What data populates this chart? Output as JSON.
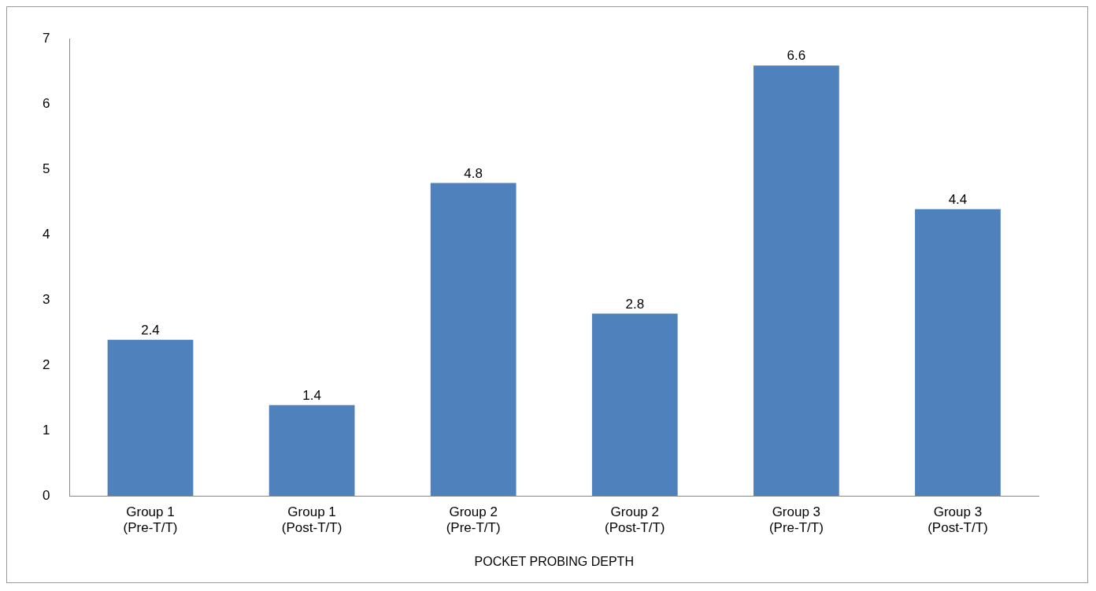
{
  "chart_data": {
    "type": "bar",
    "categories": [
      "Group 1\n(Pre-T/T)",
      "Group 1\n(Post-T/T)",
      "Group 2\n(Pre-T/T)",
      "Group 2\n(Post-T/T)",
      "Group 3\n(Pre-T/T)",
      "Group 3\n(Post-T/T)"
    ],
    "values": [
      2.4,
      1.4,
      4.8,
      2.8,
      6.6,
      4.4
    ],
    "color": "#4f81bd",
    "xlabel": "POCKET PROBING DEPTH",
    "ylim": [
      0,
      7
    ],
    "yticks": [
      0,
      1,
      2,
      3,
      4,
      5,
      6,
      7
    ],
    "grid": false,
    "data_labels": true,
    "legend": false
  }
}
